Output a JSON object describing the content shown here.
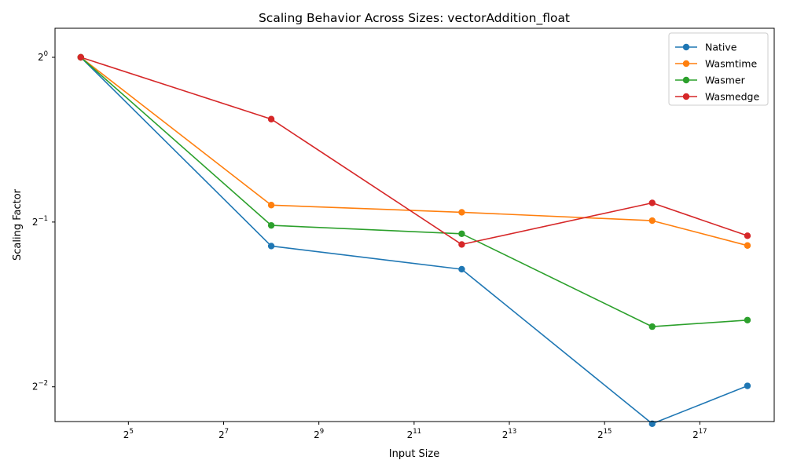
{
  "chart_data": {
    "type": "line",
    "title": "Scaling Behavior Across Sizes: vectorAddition_float",
    "xlabel": "Input Size",
    "ylabel": "Scaling Factor",
    "x_scale": "log2",
    "y_scale": "log2",
    "xlim": [
      11.0,
      387000
    ],
    "ylim": [
      0.216,
      1.13
    ],
    "x_ticks": [
      {
        "value": 32,
        "base": "2",
        "exp": "5"
      },
      {
        "value": 128,
        "base": "2",
        "exp": "7"
      },
      {
        "value": 512,
        "base": "2",
        "exp": "9"
      },
      {
        "value": 2048,
        "base": "2",
        "exp": "11"
      },
      {
        "value": 8192,
        "base": "2",
        "exp": "13"
      },
      {
        "value": 32768,
        "base": "2",
        "exp": "15"
      },
      {
        "value": 131072,
        "base": "2",
        "exp": "17"
      }
    ],
    "y_ticks": [
      {
        "value": 1,
        "base": "2",
        "exp": "0"
      },
      {
        "value": 0.5,
        "base": "2",
        "exp": "−1"
      },
      {
        "value": 0.25,
        "base": "2",
        "exp": "−2"
      }
    ],
    "x": [
      16,
      256,
      4096,
      65536,
      262144
    ],
    "series": [
      {
        "name": "Native",
        "color": "#1f77b4",
        "values": [
          1.0,
          0.452,
          0.41,
          0.214,
          0.251
        ]
      },
      {
        "name": "Wasmtime",
        "color": "#ff7f0e",
        "values": [
          1.0,
          0.537,
          0.521,
          0.503,
          0.453
        ]
      },
      {
        "name": "Wasmer",
        "color": "#2ca02c",
        "values": [
          1.0,
          0.493,
          0.476,
          0.322,
          0.331
        ]
      },
      {
        "name": "Wasmedge",
        "color": "#d62728",
        "values": [
          1.0,
          0.771,
          0.455,
          0.542,
          0.472
        ]
      }
    ],
    "legend_position": "top-right",
    "grid": false
  }
}
